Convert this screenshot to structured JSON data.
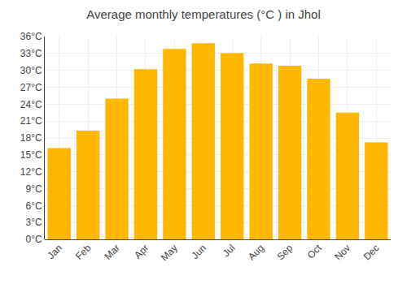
{
  "chart_data": {
    "type": "bar",
    "title": "Average monthly temperatures (°C ) in Jhol",
    "categories": [
      "Jan",
      "Feb",
      "Mar",
      "Apr",
      "May",
      "Jun",
      "Jul",
      "Aug",
      "Sep",
      "Oct",
      "Nov",
      "Dec"
    ],
    "values": [
      16.2,
      19.3,
      25.0,
      30.2,
      33.8,
      34.8,
      33.1,
      31.2,
      30.8,
      28.5,
      22.5,
      17.2
    ],
    "color": "#FFB700",
    "ylim": [
      0,
      36
    ],
    "yticks": [
      {
        "value": 0,
        "label": "0°C"
      },
      {
        "value": 3,
        "label": "3°C"
      },
      {
        "value": 6,
        "label": "6°C"
      },
      {
        "value": 9,
        "label": "9°C"
      },
      {
        "value": 12,
        "label": "12°C"
      },
      {
        "value": 15,
        "label": "15°C"
      },
      {
        "value": 18,
        "label": "18°C"
      },
      {
        "value": 21,
        "label": "21°C"
      },
      {
        "value": 24,
        "label": "24°C"
      },
      {
        "value": 27,
        "label": "27°C"
      },
      {
        "value": 30,
        "label": "30°C"
      },
      {
        "value": 33,
        "label": "33°C"
      },
      {
        "value": 36,
        "label": "36°C"
      }
    ],
    "grid": true
  }
}
